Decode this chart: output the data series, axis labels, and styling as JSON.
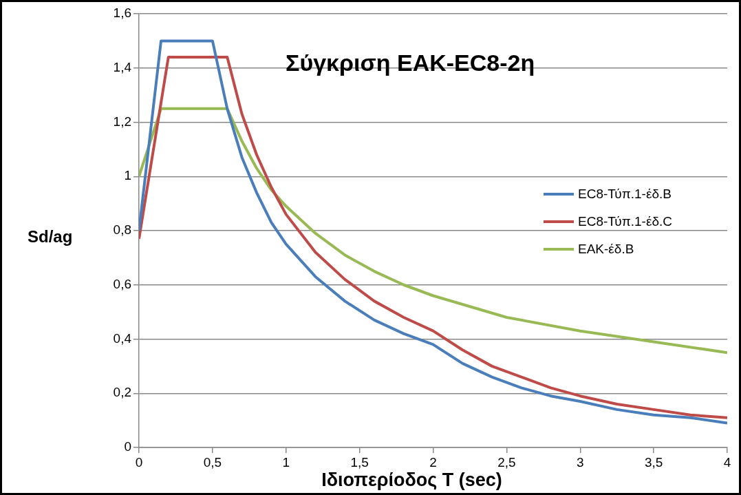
{
  "chart_data": {
    "type": "line",
    "title": "Σύγκριση ΕΑΚ-EC8-2η",
    "xlabel": "Ιδιοπερίοδος T (sec)",
    "ylabel": "Sd/ag",
    "xlim": [
      0,
      4
    ],
    "xticks": [
      0,
      {
        "value": 0.5,
        "label": "0,5"
      },
      1,
      {
        "value": 1.5,
        "label": "1,5"
      },
      2,
      {
        "value": 2.5,
        "label": "2,5"
      },
      3,
      {
        "value": 3.5,
        "label": "3,5"
      },
      4
    ],
    "ylim": [
      0,
      1.6
    ],
    "yticks": [
      0,
      {
        "value": 0.2,
        "label": "0,2"
      },
      {
        "value": 0.4,
        "label": "0,4"
      },
      {
        "value": 0.6,
        "label": "0,6"
      },
      {
        "value": 0.8,
        "label": "0,8"
      },
      1,
      {
        "value": 1.2,
        "label": "1,2"
      },
      {
        "value": 1.4,
        "label": "1,4"
      },
      {
        "value": 1.6,
        "label": "1,6"
      }
    ],
    "grid": "y",
    "legend": "right",
    "marker": "none",
    "line_style": "solid",
    "series": [
      {
        "name": "EC8-Τύπ.1-έδ.B",
        "color": "#4a7ebb",
        "x": [
          0,
          0.15,
          0.5,
          0.6,
          0.7,
          0.8,
          0.9,
          1.0,
          1.2,
          1.4,
          1.6,
          1.8,
          2.0,
          2.2,
          2.4,
          2.6,
          2.8,
          3.0,
          3.25,
          3.5,
          3.75,
          4.0
        ],
        "values": [
          0.8,
          1.5,
          1.5,
          1.25,
          1.07,
          0.94,
          0.83,
          0.75,
          0.63,
          0.54,
          0.47,
          0.42,
          0.38,
          0.31,
          0.26,
          0.22,
          0.19,
          0.17,
          0.14,
          0.12,
          0.11,
          0.09
        ]
      },
      {
        "name": "EC8-Τύπ.1-έδ.C",
        "color": "#be4b48",
        "x": [
          0,
          0.2,
          0.6,
          0.7,
          0.8,
          0.9,
          1.0,
          1.2,
          1.4,
          1.6,
          1.8,
          2.0,
          2.2,
          2.4,
          2.6,
          2.8,
          3.0,
          3.25,
          3.5,
          3.75,
          4.0
        ],
        "values": [
          0.77,
          1.44,
          1.44,
          1.23,
          1.08,
          0.96,
          0.86,
          0.72,
          0.62,
          0.54,
          0.48,
          0.43,
          0.36,
          0.3,
          0.26,
          0.22,
          0.19,
          0.16,
          0.14,
          0.12,
          0.11
        ]
      },
      {
        "name": "ΕΑΚ-έδ.B",
        "color": "#98b954",
        "x": [
          0,
          0.15,
          0.6,
          0.7,
          0.8,
          0.9,
          1.0,
          1.2,
          1.4,
          1.6,
          1.8,
          2.0,
          2.5,
          3.0,
          3.5,
          4.0
        ],
        "values": [
          1.0,
          1.25,
          1.25,
          1.13,
          1.03,
          0.95,
          0.89,
          0.79,
          0.71,
          0.65,
          0.6,
          0.56,
          0.48,
          0.43,
          0.39,
          0.35
        ]
      }
    ]
  }
}
